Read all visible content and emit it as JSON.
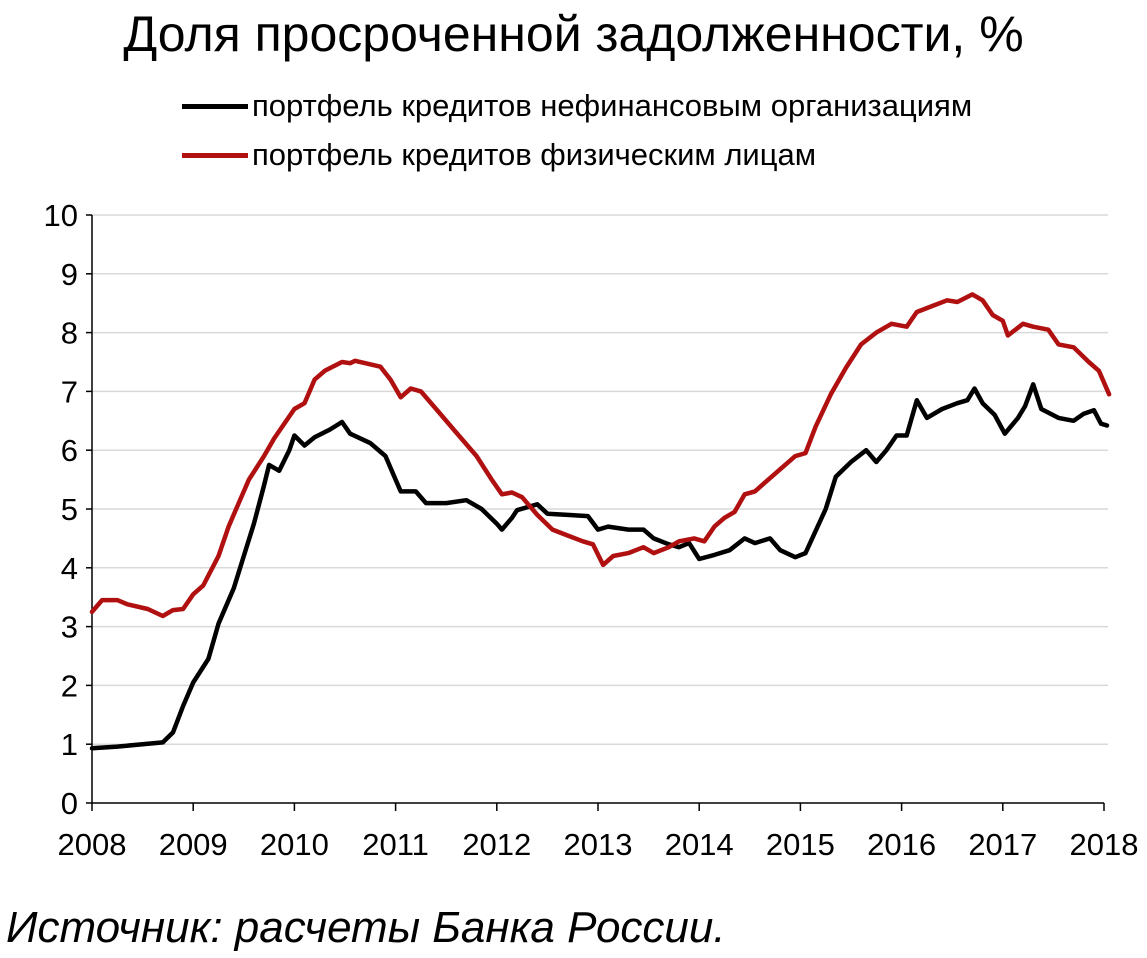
{
  "chart_data": {
    "type": "line",
    "title": "Доля просроченной задолженности, %",
    "x_ticks": [
      "2008",
      "2009",
      "2010",
      "2011",
      "2012",
      "2013",
      "2014",
      "2015",
      "2016",
      "2017",
      "2018"
    ],
    "xlim": [
      2008,
      2018
    ],
    "ylim": [
      0,
      10
    ],
    "y_ticks": [
      "0",
      "1",
      "2",
      "3",
      "4",
      "5",
      "6",
      "7",
      "8",
      "9",
      "10"
    ],
    "grid": "horizontal",
    "legend_position": "top",
    "series": [
      {
        "name": "портфель кредитов нефинансовым организациям",
        "color": "#000000",
        "points": [
          [
            2008.0,
            0.93
          ],
          [
            2008.25,
            0.96
          ],
          [
            2008.5,
            1.0
          ],
          [
            2008.7,
            1.03
          ],
          [
            2008.8,
            1.2
          ],
          [
            2008.9,
            1.65
          ],
          [
            2009.0,
            2.05
          ],
          [
            2009.15,
            2.45
          ],
          [
            2009.25,
            3.05
          ],
          [
            2009.4,
            3.65
          ],
          [
            2009.5,
            4.2
          ],
          [
            2009.6,
            4.75
          ],
          [
            2009.7,
            5.4
          ],
          [
            2009.75,
            5.75
          ],
          [
            2009.85,
            5.65
          ],
          [
            2009.95,
            6.0
          ],
          [
            2010.0,
            6.25
          ],
          [
            2010.1,
            6.08
          ],
          [
            2010.2,
            6.22
          ],
          [
            2010.35,
            6.35
          ],
          [
            2010.47,
            6.48
          ],
          [
            2010.55,
            6.28
          ],
          [
            2010.75,
            6.12
          ],
          [
            2010.9,
            5.9
          ],
          [
            2011.0,
            5.5
          ],
          [
            2011.05,
            5.3
          ],
          [
            2011.2,
            5.3
          ],
          [
            2011.3,
            5.1
          ],
          [
            2011.5,
            5.1
          ],
          [
            2011.7,
            5.15
          ],
          [
            2011.85,
            5.0
          ],
          [
            2012.0,
            4.75
          ],
          [
            2012.05,
            4.65
          ],
          [
            2012.15,
            4.85
          ],
          [
            2012.2,
            4.98
          ],
          [
            2012.4,
            5.08
          ],
          [
            2012.5,
            4.92
          ],
          [
            2012.7,
            4.9
          ],
          [
            2012.9,
            4.88
          ],
          [
            2013.0,
            4.65
          ],
          [
            2013.1,
            4.7
          ],
          [
            2013.3,
            4.65
          ],
          [
            2013.45,
            4.65
          ],
          [
            2013.55,
            4.5
          ],
          [
            2013.7,
            4.4
          ],
          [
            2013.8,
            4.35
          ],
          [
            2013.9,
            4.42
          ],
          [
            2014.0,
            4.15
          ],
          [
            2014.15,
            4.22
          ],
          [
            2014.3,
            4.3
          ],
          [
            2014.45,
            4.5
          ],
          [
            2014.55,
            4.42
          ],
          [
            2014.7,
            4.5
          ],
          [
            2014.8,
            4.3
          ],
          [
            2014.95,
            4.18
          ],
          [
            2015.05,
            4.25
          ],
          [
            2015.25,
            5.0
          ],
          [
            2015.35,
            5.55
          ],
          [
            2015.5,
            5.8
          ],
          [
            2015.65,
            6.0
          ],
          [
            2015.75,
            5.8
          ],
          [
            2015.85,
            6.0
          ],
          [
            2015.95,
            6.25
          ],
          [
            2016.05,
            6.25
          ],
          [
            2016.15,
            6.85
          ],
          [
            2016.25,
            6.55
          ],
          [
            2016.4,
            6.7
          ],
          [
            2016.55,
            6.8
          ],
          [
            2016.65,
            6.85
          ],
          [
            2016.72,
            7.05
          ],
          [
            2016.8,
            6.8
          ],
          [
            2016.92,
            6.6
          ],
          [
            2017.02,
            6.28
          ],
          [
            2017.15,
            6.55
          ],
          [
            2017.22,
            6.75
          ],
          [
            2017.3,
            7.12
          ],
          [
            2017.38,
            6.7
          ],
          [
            2017.55,
            6.55
          ],
          [
            2017.7,
            6.5
          ],
          [
            2017.8,
            6.62
          ],
          [
            2017.9,
            6.68
          ],
          [
            2017.97,
            6.45
          ],
          [
            2018.03,
            6.42
          ]
        ]
      },
      {
        "name": "портфель кредитов физическим лицам",
        "color": "#b01010",
        "points": [
          [
            2008.0,
            3.25
          ],
          [
            2008.1,
            3.45
          ],
          [
            2008.25,
            3.45
          ],
          [
            2008.35,
            3.38
          ],
          [
            2008.55,
            3.3
          ],
          [
            2008.7,
            3.18
          ],
          [
            2008.8,
            3.28
          ],
          [
            2008.9,
            3.3
          ],
          [
            2009.0,
            3.55
          ],
          [
            2009.1,
            3.7
          ],
          [
            2009.25,
            4.2
          ],
          [
            2009.35,
            4.7
          ],
          [
            2009.45,
            5.1
          ],
          [
            2009.55,
            5.5
          ],
          [
            2009.7,
            5.9
          ],
          [
            2009.8,
            6.2
          ],
          [
            2010.0,
            6.7
          ],
          [
            2010.1,
            6.8
          ],
          [
            2010.2,
            7.2
          ],
          [
            2010.3,
            7.35
          ],
          [
            2010.47,
            7.5
          ],
          [
            2010.55,
            7.48
          ],
          [
            2010.6,
            7.52
          ],
          [
            2010.85,
            7.42
          ],
          [
            2010.95,
            7.2
          ],
          [
            2011.05,
            6.9
          ],
          [
            2011.15,
            7.05
          ],
          [
            2011.25,
            7.0
          ],
          [
            2011.4,
            6.7
          ],
          [
            2011.6,
            6.3
          ],
          [
            2011.8,
            5.9
          ],
          [
            2011.95,
            5.5
          ],
          [
            2012.05,
            5.25
          ],
          [
            2012.15,
            5.28
          ],
          [
            2012.25,
            5.2
          ],
          [
            2012.4,
            4.9
          ],
          [
            2012.55,
            4.65
          ],
          [
            2012.7,
            4.55
          ],
          [
            2012.85,
            4.45
          ],
          [
            2012.95,
            4.4
          ],
          [
            2013.05,
            4.05
          ],
          [
            2013.15,
            4.2
          ],
          [
            2013.3,
            4.25
          ],
          [
            2013.45,
            4.35
          ],
          [
            2013.55,
            4.25
          ],
          [
            2013.7,
            4.35
          ],
          [
            2013.8,
            4.45
          ],
          [
            2013.95,
            4.5
          ],
          [
            2014.05,
            4.45
          ],
          [
            2014.15,
            4.7
          ],
          [
            2014.25,
            4.85
          ],
          [
            2014.35,
            4.95
          ],
          [
            2014.45,
            5.25
          ],
          [
            2014.55,
            5.3
          ],
          [
            2014.75,
            5.6
          ],
          [
            2014.95,
            5.9
          ],
          [
            2015.05,
            5.95
          ],
          [
            2015.15,
            6.4
          ],
          [
            2015.3,
            6.95
          ],
          [
            2015.45,
            7.4
          ],
          [
            2015.6,
            7.8
          ],
          [
            2015.75,
            8.0
          ],
          [
            2015.9,
            8.15
          ],
          [
            2016.05,
            8.1
          ],
          [
            2016.15,
            8.35
          ],
          [
            2016.3,
            8.45
          ],
          [
            2016.45,
            8.55
          ],
          [
            2016.55,
            8.52
          ],
          [
            2016.7,
            8.65
          ],
          [
            2016.8,
            8.55
          ],
          [
            2016.9,
            8.3
          ],
          [
            2017.0,
            8.2
          ],
          [
            2017.05,
            7.95
          ],
          [
            2017.2,
            8.15
          ],
          [
            2017.3,
            8.1
          ],
          [
            2017.45,
            8.05
          ],
          [
            2017.55,
            7.8
          ],
          [
            2017.7,
            7.75
          ],
          [
            2017.85,
            7.5
          ],
          [
            2017.95,
            7.35
          ],
          [
            2018.05,
            6.95
          ]
        ]
      }
    ]
  },
  "source_note": "Источник: расчеты Банка России."
}
